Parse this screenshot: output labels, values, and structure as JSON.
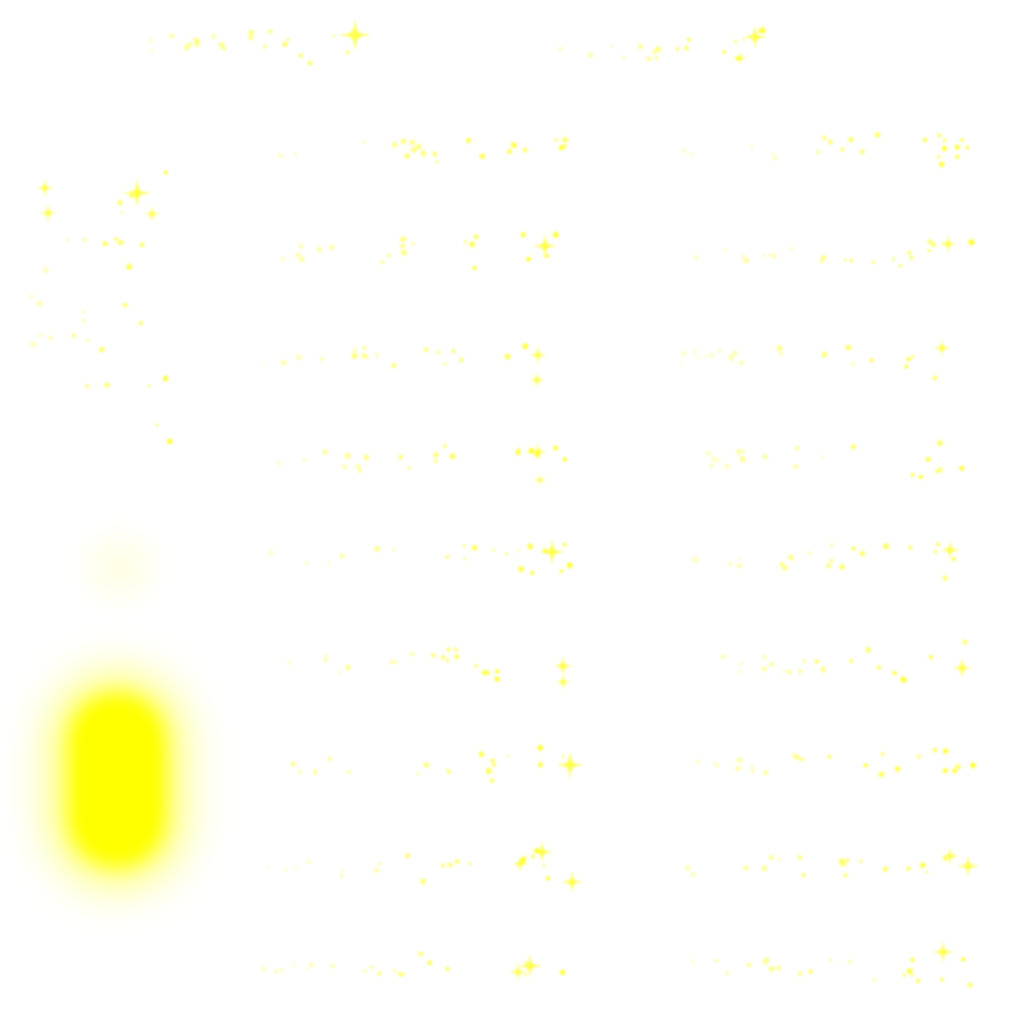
{
  "sprite_sheet": {
    "background_color": "#ffffff",
    "sparkle_color": "#ffff00",
    "glow_color": "#ffff00",
    "rows": 10,
    "columns_per_row": 2,
    "frame_count": 19,
    "glow_frame": "glow-blob"
  }
}
